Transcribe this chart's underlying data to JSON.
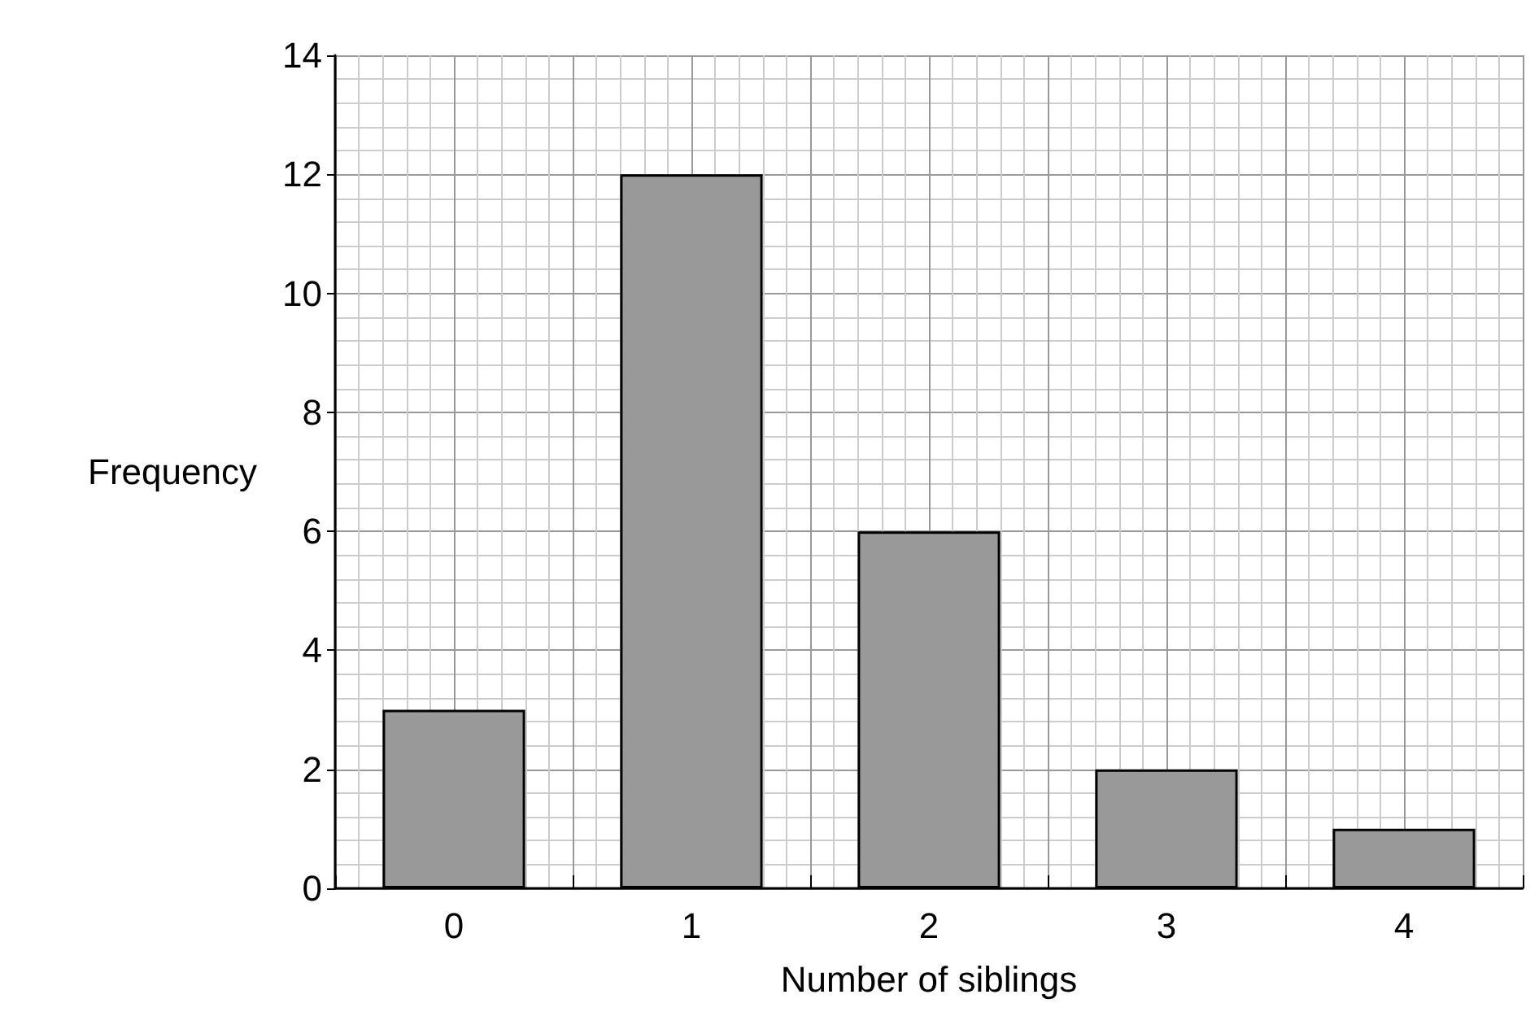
{
  "chart_data": {
    "type": "bar",
    "xlabel": "Number of siblings",
    "ylabel": "Frequency",
    "categories": [
      "0",
      "1",
      "2",
      "3",
      "4"
    ],
    "values": [
      3,
      12,
      6,
      2,
      1
    ],
    "color": "#999999",
    "ylim": [
      0,
      14
    ],
    "yticks": [
      0,
      2,
      4,
      6,
      8,
      10,
      12,
      14
    ],
    "grid": true
  }
}
